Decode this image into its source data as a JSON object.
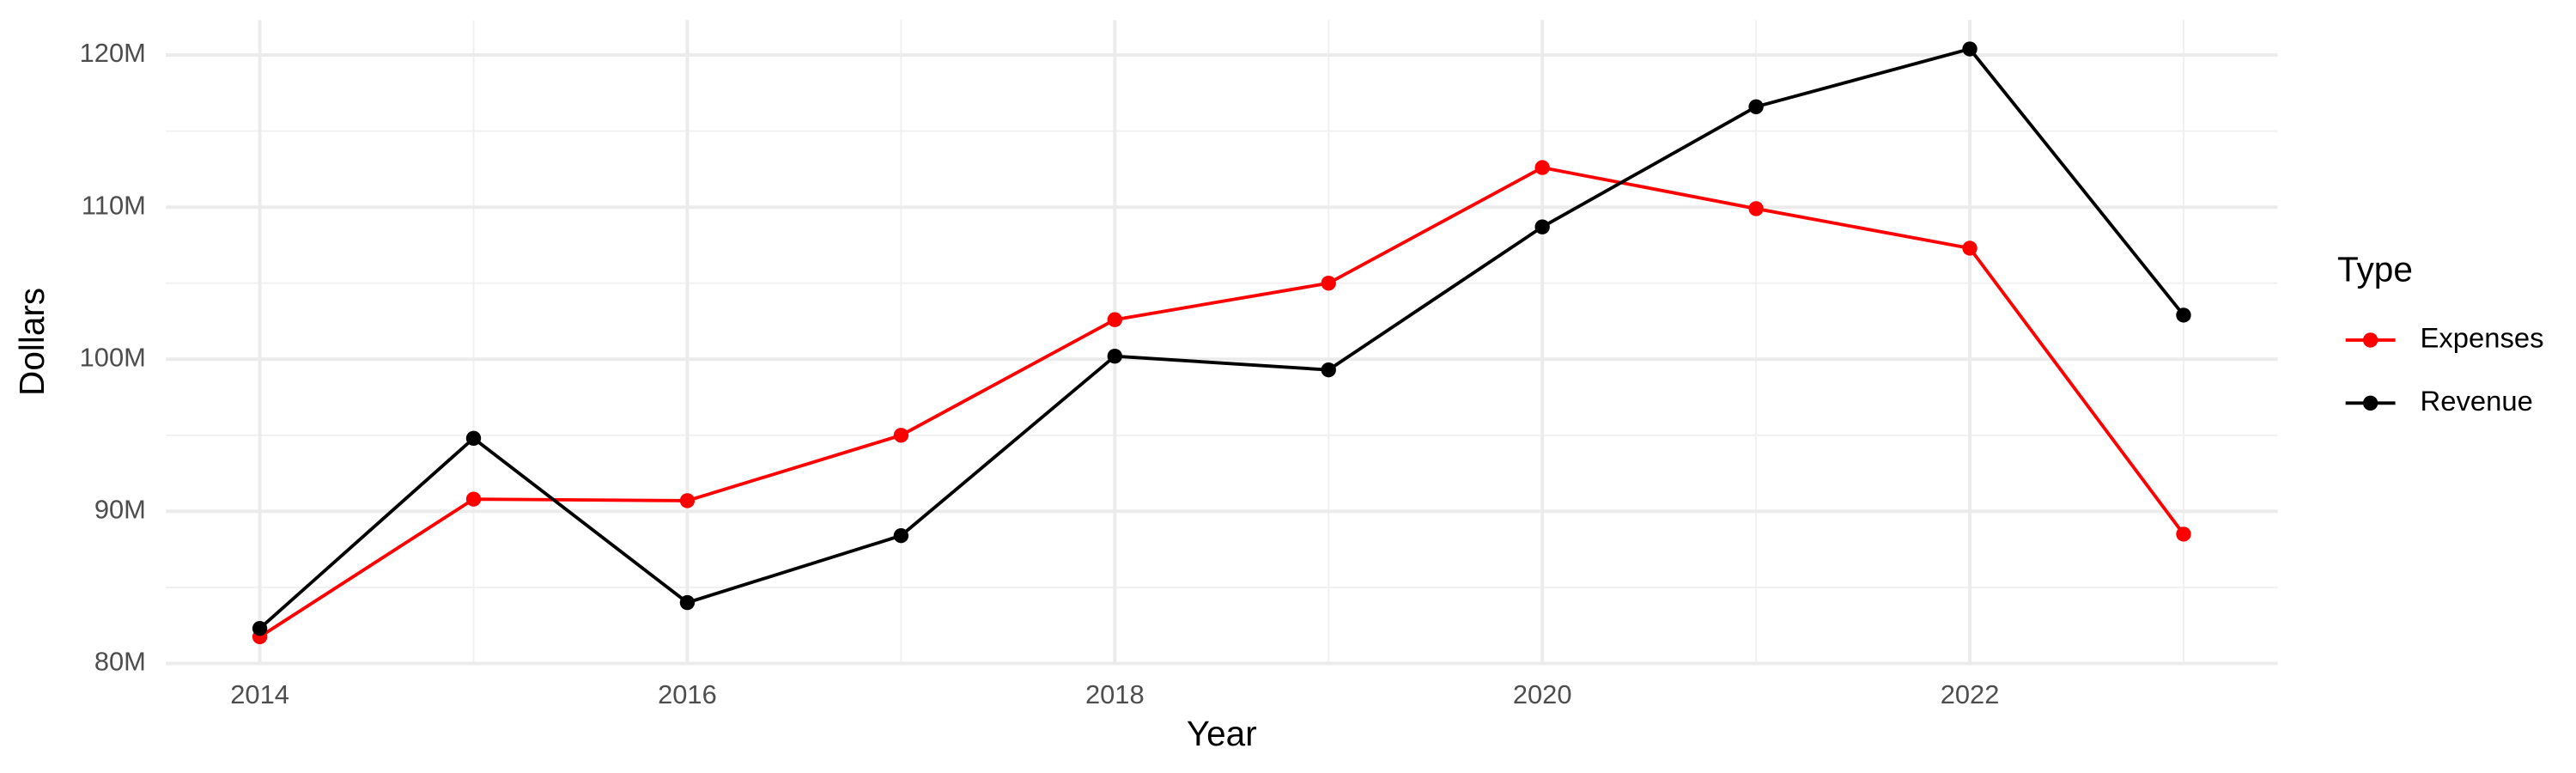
{
  "chart_data": {
    "type": "line",
    "x_label": "Year",
    "y_label": "Dollars",
    "legend_title": "Type",
    "x": [
      2014,
      2015,
      2016,
      2017,
      2018,
      2019,
      2020,
      2021,
      2022,
      2023
    ],
    "series": [
      {
        "name": "Expenses",
        "color": "#ff0000",
        "values": [
          81750000,
          90800000,
          90700000,
          95000000,
          102600000,
          105000000,
          112600000,
          109900000,
          107300000,
          88500000
        ]
      },
      {
        "name": "Revenue",
        "color": "#000000",
        "values": [
          82300000,
          94800000,
          84000000,
          88400000,
          100200000,
          99300000,
          108700000,
          116600000,
          120400000,
          102900000
        ]
      }
    ],
    "xlim": [
      2013.56,
      2023.44
    ],
    "ylim": [
      80000000,
      122300000
    ],
    "xticks": [
      2014,
      2016,
      2018,
      2020,
      2022
    ],
    "yticks": [
      {
        "value": 80000000,
        "label": "80M"
      },
      {
        "value": 90000000,
        "label": "90M"
      },
      {
        "value": 100000000,
        "label": "100M"
      },
      {
        "value": 110000000,
        "label": "110M"
      },
      {
        "value": 120000000,
        "label": "120M"
      }
    ],
    "grid": true,
    "minor_grid": true,
    "legend_position": "right"
  }
}
